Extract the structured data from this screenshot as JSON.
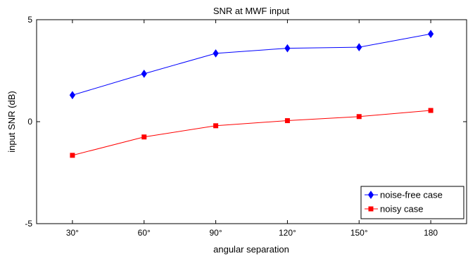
{
  "chart_data": {
    "type": "line",
    "title": "SNR at MWF input",
    "xlabel": "angular separation",
    "ylabel": "input SNR (dB)",
    "categories": [
      "30°",
      "60°",
      "90°",
      "120°",
      "150°",
      "180"
    ],
    "x": [
      30,
      60,
      90,
      120,
      150,
      180
    ],
    "xlim": [
      15,
      195
    ],
    "ylim": [
      -5,
      5
    ],
    "yticks": [
      -5,
      0,
      5
    ],
    "grid": false,
    "legend_position": "bottom-right",
    "series": [
      {
        "name": "noise-free case",
        "color": "#0000ff",
        "marker": "diamond",
        "values": [
          1.3,
          2.35,
          3.35,
          3.6,
          3.65,
          4.3
        ]
      },
      {
        "name": "noisy case",
        "color": "#ff0000",
        "marker": "square",
        "values": [
          -1.65,
          -0.75,
          -0.2,
          0.05,
          0.25,
          0.55
        ]
      }
    ]
  }
}
